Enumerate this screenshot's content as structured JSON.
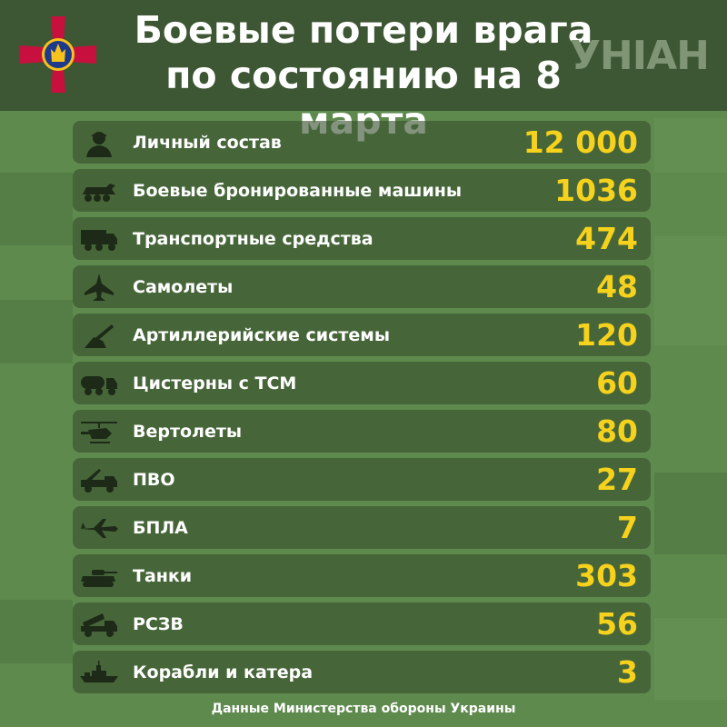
{
  "header": {
    "title_line1": "Боевые потери врага",
    "title_line2": "по состоянию на 8 марта",
    "logo_text": "УНІАН",
    "emblem_icon": "armed-forces-cross-emblem"
  },
  "colors": {
    "header_bg": "#3d5633",
    "page_bg": "#5f8a4e",
    "row_bg": "#3f5a33",
    "value": "#f6d21d",
    "emblem_red": "#c8103e",
    "emblem_blue": "#1e3a8a",
    "emblem_gold": "#f6c21b"
  },
  "items": [
    {
      "label": "Личный состав",
      "value": "12 000",
      "icon": "soldier-icon"
    },
    {
      "label": "Боевые бронированные машины",
      "value": "1036",
      "icon": "armored-vehicle-icon"
    },
    {
      "label": "Транспортные средства",
      "value": "474",
      "icon": "truck-icon"
    },
    {
      "label": "Самолеты",
      "value": "48",
      "icon": "jet-icon"
    },
    {
      "label": "Артиллерийские системы",
      "value": "120",
      "icon": "artillery-icon"
    },
    {
      "label": "Цистерны с ТСМ",
      "value": "60",
      "icon": "tanker-truck-icon"
    },
    {
      "label": "Вертолеты",
      "value": "80",
      "icon": "helicopter-icon"
    },
    {
      "label": "ПВО",
      "value": "27",
      "icon": "air-defense-icon"
    },
    {
      "label": "БПЛА",
      "value": "7",
      "icon": "drone-icon"
    },
    {
      "label": "Танки",
      "value": "303",
      "icon": "tank-icon"
    },
    {
      "label": "РСЗВ",
      "value": "56",
      "icon": "mlrs-icon"
    },
    {
      "label": "Корабли и катера",
      "value": "3",
      "icon": "ship-icon"
    }
  ],
  "footer": {
    "source": "Данные Министерства обороны Украины"
  }
}
